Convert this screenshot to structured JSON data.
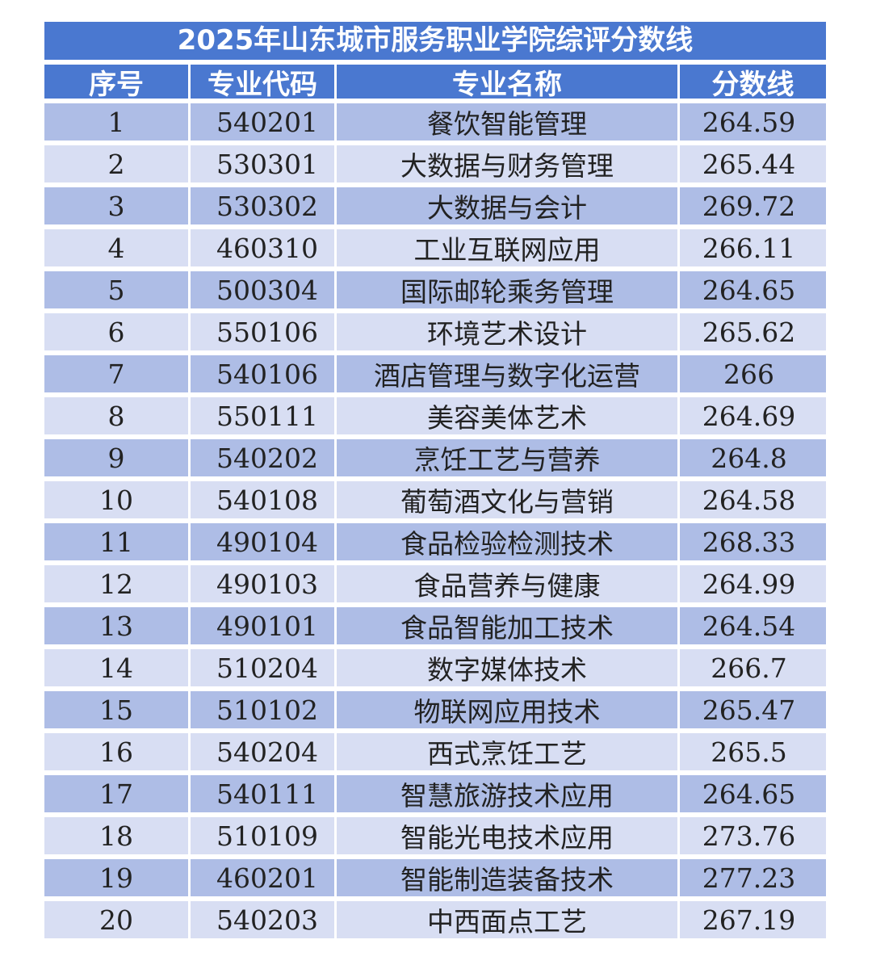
{
  "title": "2025年山东城市服务职业学院综评分数线",
  "headers": [
    "序号",
    "专业代码",
    "专业名称",
    "分数线"
  ],
  "rows": [
    {
      "no": "1",
      "code": "540201",
      "name": "餐饮智能管理",
      "score": "264.59"
    },
    {
      "no": "2",
      "code": "530301",
      "name": "大数据与财务管理",
      "score": "265.44"
    },
    {
      "no": "3",
      "code": "530302",
      "name": "大数据与会计",
      "score": "269.72"
    },
    {
      "no": "4",
      "code": "460310",
      "name": "工业互联网应用",
      "score": "266.11"
    },
    {
      "no": "5",
      "code": "500304",
      "name": "国际邮轮乘务管理",
      "score": "264.65"
    },
    {
      "no": "6",
      "code": "550106",
      "name": "环境艺术设计",
      "score": "265.62"
    },
    {
      "no": "7",
      "code": "540106",
      "name": "酒店管理与数字化运营",
      "score": "266"
    },
    {
      "no": "8",
      "code": "550111",
      "name": "美容美体艺术",
      "score": "264.69"
    },
    {
      "no": "9",
      "code": "540202",
      "name": "烹饪工艺与营养",
      "score": "264.8"
    },
    {
      "no": "10",
      "code": "540108",
      "name": "葡萄酒文化与营销",
      "score": "264.58"
    },
    {
      "no": "11",
      "code": "490104",
      "name": "食品检验检测技术",
      "score": "268.33"
    },
    {
      "no": "12",
      "code": "490103",
      "name": "食品营养与健康",
      "score": "264.99"
    },
    {
      "no": "13",
      "code": "490101",
      "name": "食品智能加工技术",
      "score": "264.54"
    },
    {
      "no": "14",
      "code": "510204",
      "name": "数字媒体技术",
      "score": "266.7"
    },
    {
      "no": "15",
      "code": "510102",
      "name": "物联网应用技术",
      "score": "265.47"
    },
    {
      "no": "16",
      "code": "540204",
      "name": "西式烹饪工艺",
      "score": "265.5"
    },
    {
      "no": "17",
      "code": "540111",
      "name": "智慧旅游技术应用",
      "score": "264.65"
    },
    {
      "no": "18",
      "code": "510109",
      "name": "智能光电技术应用",
      "score": "273.76"
    },
    {
      "no": "19",
      "code": "460201",
      "name": "智能制造装备技术",
      "score": "277.23"
    },
    {
      "no": "20",
      "code": "540203",
      "name": "中西面点工艺",
      "score": "267.19"
    }
  ],
  "colors": {
    "header_bg": "#4a78d0",
    "row_dark": "#aebde6",
    "row_light": "#d8def3"
  }
}
